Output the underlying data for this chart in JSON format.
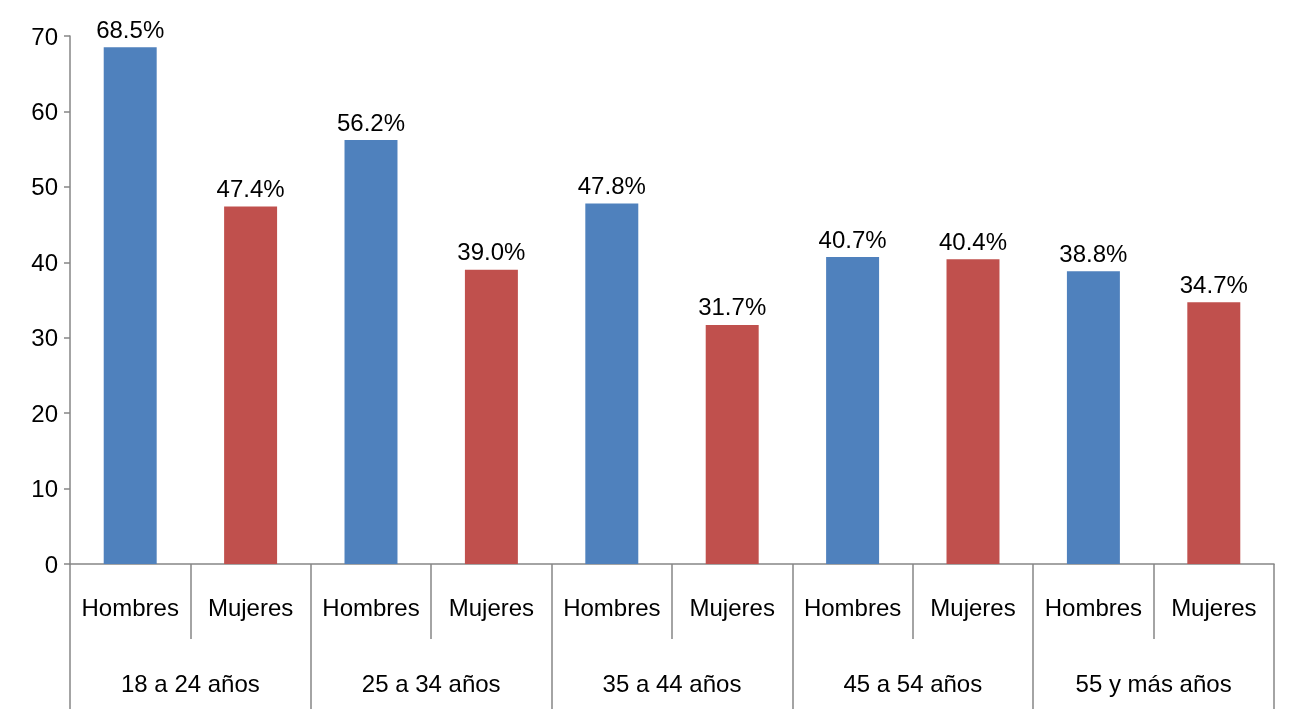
{
  "chart_data": {
    "type": "bar",
    "categories": [
      "Hombres",
      "Mujeres",
      "Hombres",
      "Mujeres",
      "Hombres",
      "Mujeres",
      "Hombres",
      "Mujeres",
      "Hombres",
      "Mujeres"
    ],
    "values": [
      68.5,
      47.4,
      56.2,
      39.0,
      47.8,
      31.7,
      40.7,
      40.4,
      38.8,
      34.7
    ],
    "colors": [
      "#4f81bd",
      "#c0504d",
      "#4f81bd",
      "#c0504d",
      "#4f81bd",
      "#c0504d",
      "#4f81bd",
      "#c0504d",
      "#4f81bd",
      "#c0504d"
    ],
    "value_labels": [
      "68.5%",
      "47.4%",
      "56.2%",
      "39.0%",
      "47.8%",
      "31.7%",
      "40.7%",
      "40.4%",
      "38.8%",
      "34.7%"
    ],
    "annotations": [
      "18 a 24 años",
      "25 a 34 años",
      "35 a 44 años",
      "45 a 54 años",
      "55 y más años"
    ],
    "ylim": [
      0,
      70
    ],
    "yticks": [
      0,
      10,
      20,
      30,
      40,
      50,
      60,
      70
    ],
    "grid": false
  }
}
